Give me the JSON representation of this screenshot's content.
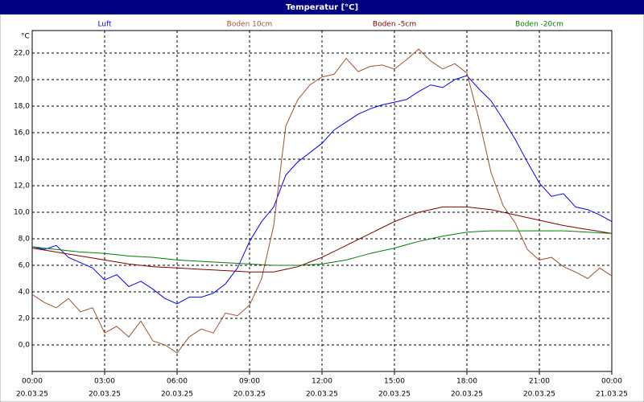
{
  "chart_data": {
    "type": "line",
    "title": "Temperatur [°C]",
    "y_unit": "°C",
    "x": [
      0,
      0.5,
      1,
      1.5,
      2,
      2.5,
      3,
      3.5,
      4,
      4.5,
      5,
      5.5,
      6,
      6.5,
      7,
      7.5,
      8,
      8.5,
      9,
      9.5,
      10,
      10.5,
      11,
      11.5,
      12,
      12.5,
      13,
      13.5,
      14,
      14.5,
      15,
      15.5,
      16,
      16.5,
      17,
      17.5,
      18,
      18.5,
      19,
      19.5,
      20,
      20.5,
      21,
      21.5,
      22,
      22.5,
      23,
      23.5,
      24
    ],
    "series": [
      {
        "name": "Luft",
        "color": "#0000ff",
        "values": [
          7.4,
          7.2,
          7.5,
          6.6,
          6.2,
          5.8,
          4.9,
          5.3,
          4.4,
          4.8,
          4.2,
          3.5,
          3.1,
          3.6,
          3.6,
          3.9,
          4.6,
          5.8,
          7.8,
          9.3,
          10.4,
          12.8,
          13.8,
          14.5,
          15.2,
          16.2,
          16.8,
          17.4,
          17.8,
          18.1,
          18.3,
          18.5,
          19.1,
          19.6,
          19.4,
          20.0,
          20.3,
          19.3,
          18.4,
          17.0,
          15.5,
          13.8,
          12.2,
          11.2,
          11.4,
          10.4,
          10.2,
          9.8,
          9.3
        ]
      },
      {
        "name": "Boden 10cm",
        "color": "#a0522d",
        "values": [
          3.8,
          3.2,
          2.8,
          3.5,
          2.5,
          2.8,
          0.9,
          1.4,
          0.6,
          1.8,
          0.3,
          0.0,
          -0.6,
          0.6,
          1.2,
          0.9,
          2.4,
          2.2,
          3.0,
          5.0,
          9.0,
          16.5,
          18.5,
          19.6,
          20.2,
          20.4,
          21.6,
          20.6,
          21.0,
          21.1,
          20.8,
          21.5,
          22.3,
          21.4,
          20.8,
          21.2,
          20.5,
          17.0,
          13.0,
          10.5,
          9.2,
          7.2,
          6.4,
          6.6,
          5.9,
          5.5,
          5.0,
          5.8,
          5.2
        ]
      },
      {
        "name": "Boden -5cm",
        "color": "#800000",
        "values": [
          7.3,
          7.15,
          7.0,
          6.85,
          6.7,
          6.55,
          6.4,
          6.25,
          6.1,
          6.0,
          5.9,
          5.85,
          5.8,
          5.75,
          5.7,
          5.65,
          5.6,
          5.55,
          5.5,
          5.5,
          5.5,
          5.7,
          5.9,
          6.25,
          6.6,
          7.05,
          7.5,
          7.95,
          8.4,
          8.85,
          9.3,
          9.65,
          10.0,
          10.2,
          10.4,
          10.4,
          10.4,
          10.3,
          10.2,
          10.0,
          9.8,
          9.6,
          9.4,
          9.2,
          9.0,
          8.85,
          8.7,
          8.55,
          8.4
        ]
      },
      {
        "name": "Boden -20cm",
        "color": "#008000",
        "values": [
          7.4,
          7.3,
          7.2,
          7.1,
          7.0,
          6.95,
          6.9,
          6.8,
          6.7,
          6.65,
          6.6,
          6.5,
          6.4,
          6.35,
          6.3,
          6.25,
          6.2,
          6.15,
          6.1,
          6.05,
          6.0,
          6.0,
          6.0,
          6.05,
          6.1,
          6.25,
          6.4,
          6.65,
          6.9,
          7.1,
          7.3,
          7.55,
          7.8,
          8.0,
          8.2,
          8.35,
          8.5,
          8.55,
          8.6,
          8.6,
          8.6,
          8.6,
          8.6,
          8.6,
          8.6,
          8.55,
          8.5,
          8.45,
          8.4
        ]
      }
    ],
    "xlim": [
      0,
      24
    ],
    "xticks": [
      {
        "value": 0,
        "label": "00:00"
      },
      {
        "value": 3,
        "label": "03:00"
      },
      {
        "value": 6,
        "label": "06:00"
      },
      {
        "value": 9,
        "label": "09:00"
      },
      {
        "value": 12,
        "label": "12:00"
      },
      {
        "value": 15,
        "label": "15:00"
      },
      {
        "value": 18,
        "label": "18:00"
      },
      {
        "value": 21,
        "label": "21:00"
      },
      {
        "value": 24,
        "label": "00:00"
      }
    ],
    "xtick_dates": [
      "20.03.25",
      "20.03.25",
      "20.03.25",
      "20.03.25",
      "20.03.25",
      "20.03.25",
      "20.03.25",
      "20.03.25",
      "21.03.25"
    ],
    "ylim": [
      -2,
      23.7
    ],
    "yticks": [
      {
        "value": 0,
        "label": "0,0"
      },
      {
        "value": 2,
        "label": "2,0"
      },
      {
        "value": 4,
        "label": "4,0"
      },
      {
        "value": 6,
        "label": "6,0"
      },
      {
        "value": 8,
        "label": "8,0"
      },
      {
        "value": 10,
        "label": "10,0"
      },
      {
        "value": 12,
        "label": "12,0"
      },
      {
        "value": 14,
        "label": "14,0"
      },
      {
        "value": 16,
        "label": "16,0"
      },
      {
        "value": 18,
        "label": "18,0"
      },
      {
        "value": 20,
        "label": "20,0"
      },
      {
        "value": 22,
        "label": "22,0"
      }
    ],
    "grid": true
  }
}
